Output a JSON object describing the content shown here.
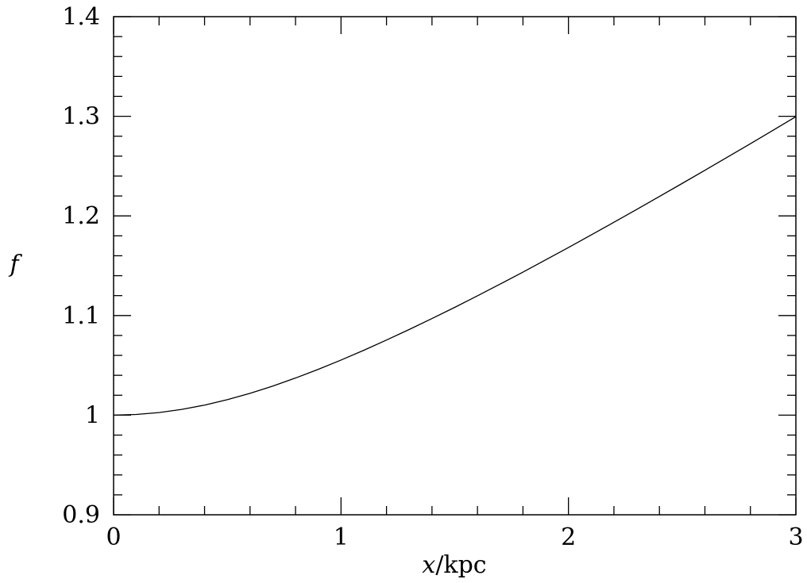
{
  "chart_data": {
    "type": "line",
    "title": "",
    "xlabel_var": "x",
    "xlabel_unit": "/kpc",
    "ylabel": "f",
    "xlim": [
      0,
      3
    ],
    "ylim": [
      0.9,
      1.4
    ],
    "grid": false,
    "x_ticks": [
      0,
      1,
      2,
      3
    ],
    "x_tick_labels": [
      "0",
      "1",
      "2",
      "3"
    ],
    "x_minor_step": 0.2,
    "y_ticks": [
      0.9,
      1.0,
      1.1,
      1.2,
      1.3,
      1.4
    ],
    "y_tick_labels": [
      "0.9",
      "1",
      "1.1",
      "1.2",
      "1.3",
      "1.4"
    ],
    "y_minor_step": 0.02,
    "series": [
      {
        "x": [
          0,
          0.1,
          0.2,
          0.3,
          0.4,
          0.5,
          0.6,
          0.7,
          0.8,
          0.9,
          1.0,
          1.1,
          1.2,
          1.3,
          1.4,
          1.5,
          1.6,
          1.7,
          1.8,
          1.9,
          2.0,
          2.1,
          2.2,
          2.3,
          2.4,
          2.5,
          2.6,
          2.7,
          2.8,
          2.9,
          3.0
        ],
        "values": [
          1.0,
          1.0007,
          1.0026,
          1.0058,
          1.0101,
          1.0155,
          1.0219,
          1.0292,
          1.0373,
          1.046,
          1.0553,
          1.0651,
          1.0754,
          1.086,
          1.097,
          1.1082,
          1.1198,
          1.1316,
          1.1436,
          1.1559,
          1.1683,
          1.1809,
          1.1936,
          1.2065,
          1.2195,
          1.2326,
          1.2458,
          1.2591,
          1.2725,
          1.286,
          1.2996
        ]
      }
    ]
  }
}
